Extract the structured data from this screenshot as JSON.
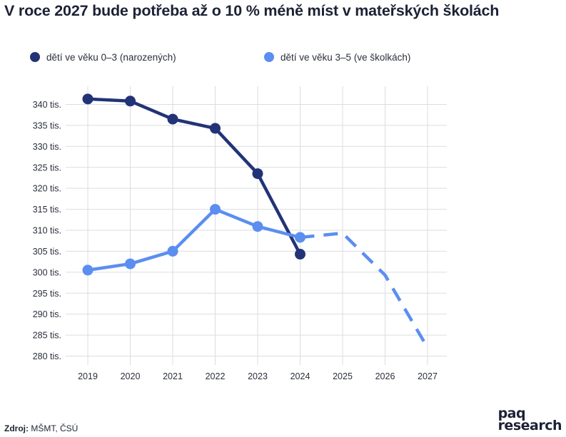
{
  "chart_data": {
    "type": "line",
    "title": "V roce 2027 bude potřeba až o 10 % méně míst v mateřských školách",
    "xlabel": "",
    "ylabel": "",
    "x": [
      "2019",
      "2020",
      "2021",
      "2022",
      "2023",
      "2024",
      "2025",
      "2026",
      "2027"
    ],
    "ylim": [
      278,
      343
    ],
    "yticks": [
      280,
      285,
      290,
      295,
      300,
      305,
      310,
      315,
      320,
      325,
      330,
      335,
      340
    ],
    "ytick_suffix": " tis.",
    "grid": true,
    "legend_position": "top-left",
    "series": [
      {
        "name": "dětí ve věku 0–3 (narozených)",
        "color": "#223377",
        "values": [
          341.3,
          340.8,
          336.5,
          334.3,
          323.5,
          304.3,
          null,
          null,
          null
        ],
        "dashed_from_index": null
      },
      {
        "name": "dětí ve věku 3–5 (ve školkách)",
        "color": "#5b8ef0",
        "values": [
          300.5,
          302.0,
          305.0,
          315.0,
          310.9,
          308.3,
          309.3,
          299.3,
          282.0
        ],
        "dashed_from_index": 5
      }
    ]
  },
  "source": {
    "label": "Zdroj:",
    "text": "MŠMT, ČSÚ"
  },
  "logo": {
    "line1": "paq",
    "line2": "research"
  }
}
